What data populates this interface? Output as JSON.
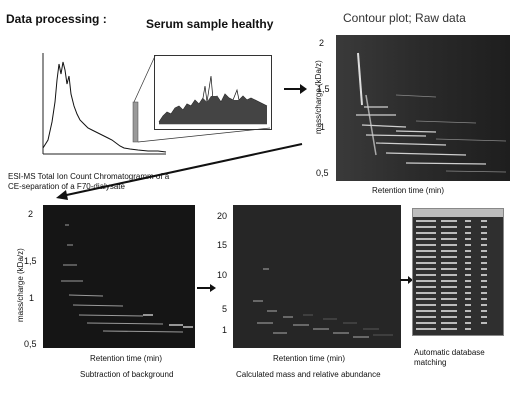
{
  "header": {
    "data_processing": "Data processing :",
    "serum_title": "Serum sample healthy",
    "contour_title": "Contour plot; Raw data"
  },
  "tic_caption": "ESI-MS Total Ion Count Chromatogramm of a CE-separation of a F70-dialysate",
  "panel_raw": {
    "ylabel": "mass/charge (kDa/z)",
    "xlabel": "Retention time (min)",
    "yticks": [
      "2",
      "1,5",
      "1",
      "0,5"
    ]
  },
  "panel_bg": {
    "ylabel": "mass/charge (kDa/z)",
    "xlabel": "Retention time (min)",
    "yticks": [
      "2",
      "1,5",
      "1",
      "0,5"
    ],
    "caption": "Subtraction of background"
  },
  "panel_mass": {
    "xlabel": "Retention time (min)",
    "yticks": [
      "20",
      "15",
      "10",
      "5",
      "1"
    ],
    "caption": "Calculated mass and relative abundance"
  },
  "database": {
    "caption": "Automatic database matching"
  }
}
